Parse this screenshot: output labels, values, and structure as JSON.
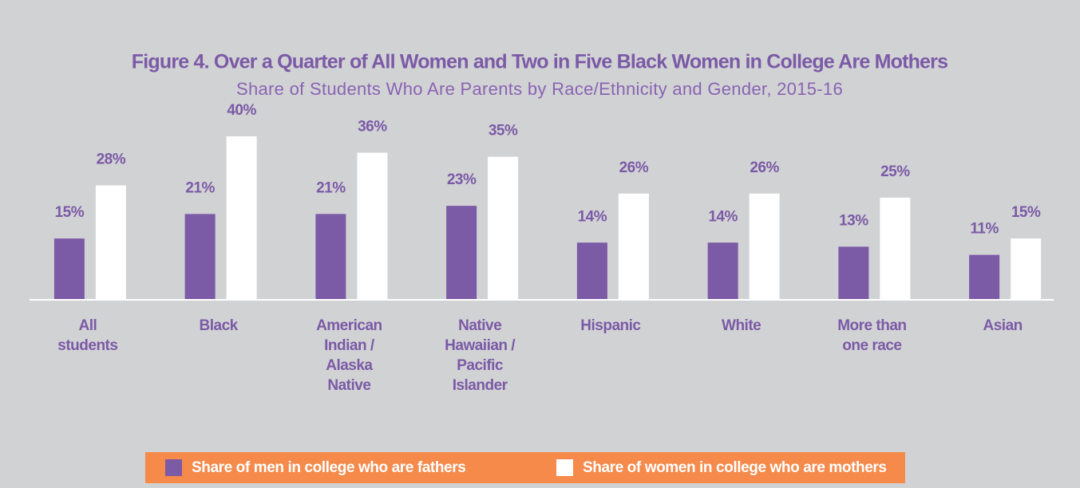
{
  "chart_data": {
    "type": "bar",
    "title": "Figure 4. Over a Quarter of All Women and Two in Five Black Women in College Are Mothers",
    "subtitle": "Share of Students Who Are Parents by Race/Ethnicity and Gender, 2015-16",
    "categories": [
      "All students",
      "Black",
      "American Indian / Alaska Native",
      "Native Hawaiian / Pacific Islander",
      "Hispanic",
      "White",
      "More than one race",
      "Asian"
    ],
    "series": [
      {
        "name": "Share of men in college who are fathers",
        "color": "#7b5aa6",
        "values": [
          15,
          21,
          21,
          23,
          14,
          14,
          13,
          11
        ],
        "value_labels": [
          "15%",
          "21%",
          "21%",
          "23%",
          "14%",
          "14%",
          "13%",
          "11%"
        ]
      },
      {
        "name": "Share of women in college who are mothers",
        "color": "#ffffff",
        "values": [
          28,
          40,
          36,
          35,
          26,
          26,
          25,
          15
        ],
        "value_labels": [
          "28%",
          "40%",
          "36%",
          "35%",
          "26%",
          "26%",
          "25%",
          "15%"
        ]
      }
    ],
    "ylim": [
      0,
      40
    ]
  }
}
